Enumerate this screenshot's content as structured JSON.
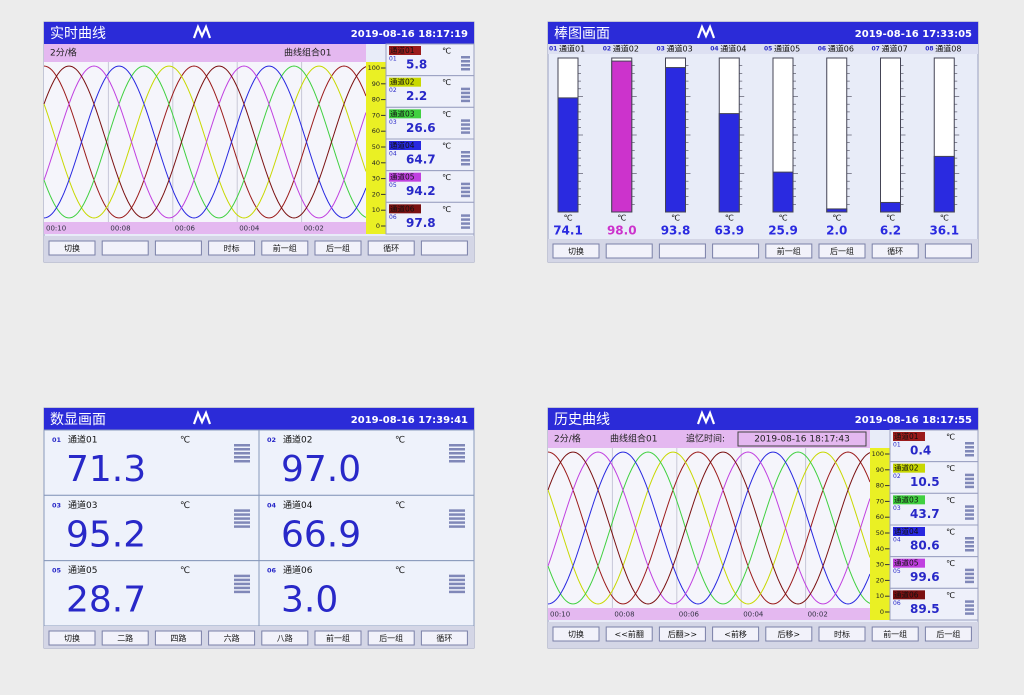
{
  "channel_colors": [
    "#9b1b1b",
    "#c8d800",
    "#40d040",
    "#2828e0",
    "#c040e0",
    "#7a1010"
  ],
  "realtime": {
    "title": "实时曲线",
    "datetime": "2019-08-16 18:17:19",
    "interval": "2分/格",
    "group": "曲线组合01",
    "ylim": [
      0,
      100
    ],
    "scale": [
      100,
      90,
      80,
      70,
      60,
      50,
      40,
      30,
      20,
      10,
      0
    ],
    "time_labels": [
      "00:10",
      "00:08",
      "00:06",
      "00:04",
      "00:02"
    ],
    "channels": [
      {
        "no": "01",
        "name": "通道01",
        "unit": "℃",
        "value": 5.8
      },
      {
        "no": "02",
        "name": "通道02",
        "unit": "℃",
        "value": 2.2
      },
      {
        "no": "03",
        "name": "通道03",
        "unit": "℃",
        "value": 26.6
      },
      {
        "no": "04",
        "name": "通道04",
        "unit": "℃",
        "value": 64.7
      },
      {
        "no": "05",
        "name": "通道05",
        "unit": "℃",
        "value": 94.2
      },
      {
        "no": "06",
        "name": "通道06",
        "unit": "℃",
        "value": 97.8
      }
    ],
    "buttons": [
      "切换",
      null,
      null,
      "时标",
      "前一组",
      "后一组",
      "循环",
      null
    ]
  },
  "bar": {
    "title": "棒图画面",
    "datetime": "2019-08-16 17:33:05",
    "ylim": [
      0,
      100
    ],
    "channels": [
      {
        "no": "01",
        "name": "通道01",
        "unit": "℃",
        "value": 74.1,
        "value_label": "74.1",
        "color": "#2a2ae0"
      },
      {
        "no": "02",
        "name": "通道02",
        "unit": "℃",
        "value": 98,
        "value_label": "98.0",
        "color": "#cc33cc"
      },
      {
        "no": "03",
        "name": "通道03",
        "unit": "℃",
        "value": 93.8,
        "value_label": "93.8",
        "color": "#2a2ae0"
      },
      {
        "no": "04",
        "name": "通道04",
        "unit": "℃",
        "value": 63.9,
        "value_label": "63.9",
        "color": "#2a2ae0"
      },
      {
        "no": "05",
        "name": "通道05",
        "unit": "℃",
        "value": 25.9,
        "value_label": "25.9",
        "color": "#2a2ae0"
      },
      {
        "no": "06",
        "name": "通道06",
        "unit": "℃",
        "value": 2,
        "value_label": "2.0",
        "color": "#2a2ae0"
      },
      {
        "no": "07",
        "name": "通道07",
        "unit": "℃",
        "value": 6.2,
        "value_label": "6.2",
        "color": "#2a2ae0"
      },
      {
        "no": "08",
        "name": "通道08",
        "unit": "℃",
        "value": 36.1,
        "value_label": "36.1",
        "color": "#2a2ae0"
      }
    ],
    "buttons": [
      "切换",
      null,
      null,
      null,
      "前一组",
      "后一组",
      "循环",
      null
    ]
  },
  "digital": {
    "title": "数显画面",
    "datetime": "2019-08-16 17:39:41",
    "channels": [
      {
        "no": "01",
        "name": "通道01",
        "unit": "℃",
        "value": 71.3,
        "value_label": "71.3"
      },
      {
        "no": "02",
        "name": "通道02",
        "unit": "℃",
        "value": 97,
        "value_label": "97.0"
      },
      {
        "no": "03",
        "name": "通道03",
        "unit": "℃",
        "value": 95.2,
        "value_label": "95.2"
      },
      {
        "no": "04",
        "name": "通道04",
        "unit": "℃",
        "value": 66.9,
        "value_label": "66.9"
      },
      {
        "no": "05",
        "name": "通道05",
        "unit": "℃",
        "value": 28.7,
        "value_label": "28.7"
      },
      {
        "no": "06",
        "name": "通道06",
        "unit": "℃",
        "value": 3,
        "value_label": "3.0"
      }
    ],
    "buttons": [
      "切换",
      "二路",
      "四路",
      "六路",
      "八路",
      "前一组",
      "后一组",
      "循环"
    ]
  },
  "history": {
    "title": "历史曲线",
    "datetime": "2019-08-16 18:17:55",
    "interval": "2分/格",
    "group": "曲线组合01",
    "recall_label": "追忆时间:",
    "recall_time": "2019-08-16 18:17:43",
    "ylim": [
      0,
      100
    ],
    "scale": [
      100,
      90,
      80,
      70,
      60,
      50,
      40,
      30,
      20,
      10,
      0
    ],
    "time_labels": [
      "00:10",
      "00:08",
      "00:06",
      "00:04",
      "00:02"
    ],
    "channels": [
      {
        "no": "01",
        "name": "通道01",
        "unit": "℃",
        "value": 0.4
      },
      {
        "no": "02",
        "name": "通道02",
        "unit": "℃",
        "value": 10.5
      },
      {
        "no": "03",
        "name": "通道03",
        "unit": "℃",
        "value": 43.7
      },
      {
        "no": "04",
        "name": "通道04",
        "unit": "℃",
        "value": 80.6
      },
      {
        "no": "05",
        "name": "通道05",
        "unit": "℃",
        "value": 99.6
      },
      {
        "no": "06",
        "name": "通道06",
        "unit": "℃",
        "value": 89.5
      }
    ],
    "buttons": [
      "切换",
      "<<前翻",
      "后翻>>",
      "<前移",
      "后移>",
      "时标",
      "前一组",
      "后一组"
    ]
  }
}
